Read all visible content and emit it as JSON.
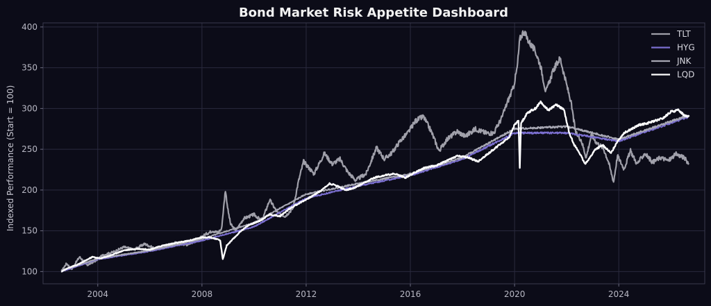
{
  "chart_data": {
    "type": "line",
    "title": "Bond Market Risk Appetite Dashboard",
    "xlabel": "",
    "ylabel": "Indexed Performance (Start = 100)",
    "xlim": [
      2001.9,
      2027.3
    ],
    "ylim": [
      85,
      405
    ],
    "x_ticks": [
      2004,
      2008,
      2012,
      2016,
      2020,
      2024
    ],
    "y_ticks": [
      100,
      150,
      200,
      250,
      300,
      350,
      400
    ],
    "grid": true,
    "legend_position": "top-right",
    "series": [
      {
        "name": "TLT",
        "color": "#a0a0aa",
        "width": 2.2,
        "x": [
          2002.6,
          2002.8,
          2003.0,
          2003.3,
          2003.6,
          2003.9,
          2004.2,
          2004.6,
          2005.0,
          2005.4,
          2005.8,
          2006.2,
          2006.6,
          2007.0,
          2007.4,
          2007.8,
          2008.1,
          2008.4,
          2008.6,
          2008.75,
          2008.9,
          2009.0,
          2009.1,
          2009.3,
          2009.6,
          2010.0,
          2010.3,
          2010.6,
          2010.9,
          2011.2,
          2011.5,
          2011.7,
          2011.9,
          2012.3,
          2012.7,
          2013.0,
          2013.3,
          2013.6,
          2013.9,
          2014.3,
          2014.7,
          2015.0,
          2015.3,
          2015.6,
          2015.9,
          2016.2,
          2016.5,
          2016.8,
          2017.1,
          2017.4,
          2017.8,
          2018.1,
          2018.5,
          2018.9,
          2019.2,
          2019.5,
          2019.75,
          2019.95,
          2020.1,
          2020.2,
          2020.35,
          2020.55,
          2020.8,
          2021.0,
          2021.2,
          2021.5,
          2021.75,
          2021.95,
          2022.15,
          2022.35,
          2022.55,
          2022.75,
          2022.95,
          2023.15,
          2023.4,
          2023.6,
          2023.8,
          2023.95,
          2024.2,
          2024.45,
          2024.7,
          2025.0,
          2025.3,
          2025.6,
          2025.9,
          2026.2,
          2026.5,
          2026.7
        ],
        "values": [
          100,
          110,
          103,
          118,
          108,
          113,
          120,
          124,
          130,
          127,
          134,
          128,
          130,
          136,
          133,
          138,
          145,
          150,
          148,
          152,
          200,
          175,
          158,
          150,
          165,
          170,
          162,
          188,
          172,
          168,
          178,
          210,
          235,
          220,
          245,
          232,
          238,
          222,
          212,
          220,
          252,
          238,
          246,
          260,
          270,
          285,
          290,
          272,
          248,
          262,
          272,
          266,
          275,
          270,
          270,
          288,
          310,
          325,
          350,
          385,
          395,
          382,
          370,
          352,
          320,
          348,
          362,
          335,
          310,
          270,
          262,
          240,
          268,
          258,
          252,
          235,
          210,
          242,
          226,
          248,
          232,
          245,
          234,
          240,
          236,
          244,
          240,
          232
        ]
      },
      {
        "name": "HYG",
        "color": "#7b6fd0",
        "width": 2.0,
        "x": [
          2002.6,
          2004.0,
          2006.0,
          2008.0,
          2010.0,
          2012.0,
          2014.0,
          2016.0,
          2018.0,
          2020.0,
          2022.0,
          2024.0,
          2026.7
        ],
        "values": [
          100,
          115,
          125,
          138,
          155,
          190,
          205,
          218,
          238,
          270,
          270,
          260,
          290
        ]
      },
      {
        "name": "JNK",
        "color": "#a8a8b4",
        "width": 2.0,
        "x": [
          2002.6,
          2004.0,
          2006.0,
          2008.0,
          2010.0,
          2012.0,
          2014.0,
          2016.0,
          2018.0,
          2020.0,
          2022.0,
          2024.0,
          2026.7
        ],
        "values": [
          101,
          116,
          126,
          140,
          160,
          195,
          208,
          220,
          240,
          275,
          278,
          262,
          292
        ]
      },
      {
        "name": "LQD",
        "color": "#ffffff",
        "width": 2.4,
        "x": [
          2002.6,
          2002.9,
          2003.2,
          2003.5,
          2003.8,
          2004.1,
          2004.5,
          2005.0,
          2005.5,
          2006.0,
          2006.5,
          2007.0,
          2007.5,
          2008.0,
          2008.3,
          2008.55,
          2008.7,
          2008.8,
          2008.95,
          2009.2,
          2009.5,
          2009.8,
          2010.2,
          2010.6,
          2011.0,
          2011.4,
          2011.8,
          2012.2,
          2012.6,
          2012.9,
          2013.2,
          2013.5,
          2013.8,
          2014.2,
          2014.6,
          2015.0,
          2015.4,
          2015.8,
          2016.2,
          2016.6,
          2017.0,
          2017.4,
          2017.8,
          2018.2,
          2018.6,
          2019.0,
          2019.4,
          2019.8,
          2020.0,
          2020.15,
          2020.2,
          2020.25,
          2020.5,
          2020.8,
          2021.0,
          2021.3,
          2021.6,
          2021.9,
          2022.1,
          2022.3,
          2022.5,
          2022.7,
          2022.9,
          2023.1,
          2023.4,
          2023.7,
          2023.95,
          2024.2,
          2024.5,
          2024.8,
          2025.1,
          2025.4,
          2025.7,
          2026.0,
          2026.3,
          2026.5,
          2026.7
        ],
        "values": [
          100,
          105,
          108,
          113,
          118,
          116,
          120,
          126,
          128,
          127,
          132,
          135,
          138,
          142,
          142,
          140,
          138,
          115,
          132,
          140,
          150,
          157,
          162,
          170,
          168,
          178,
          185,
          192,
          200,
          208,
          205,
          200,
          202,
          208,
          215,
          218,
          220,
          215,
          222,
          228,
          230,
          236,
          242,
          240,
          235,
          245,
          255,
          265,
          280,
          285,
          228,
          282,
          295,
          300,
          308,
          298,
          305,
          298,
          270,
          255,
          245,
          232,
          240,
          250,
          255,
          245,
          260,
          270,
          275,
          280,
          282,
          285,
          288,
          296,
          298,
          292,
          290
        ]
      }
    ]
  }
}
